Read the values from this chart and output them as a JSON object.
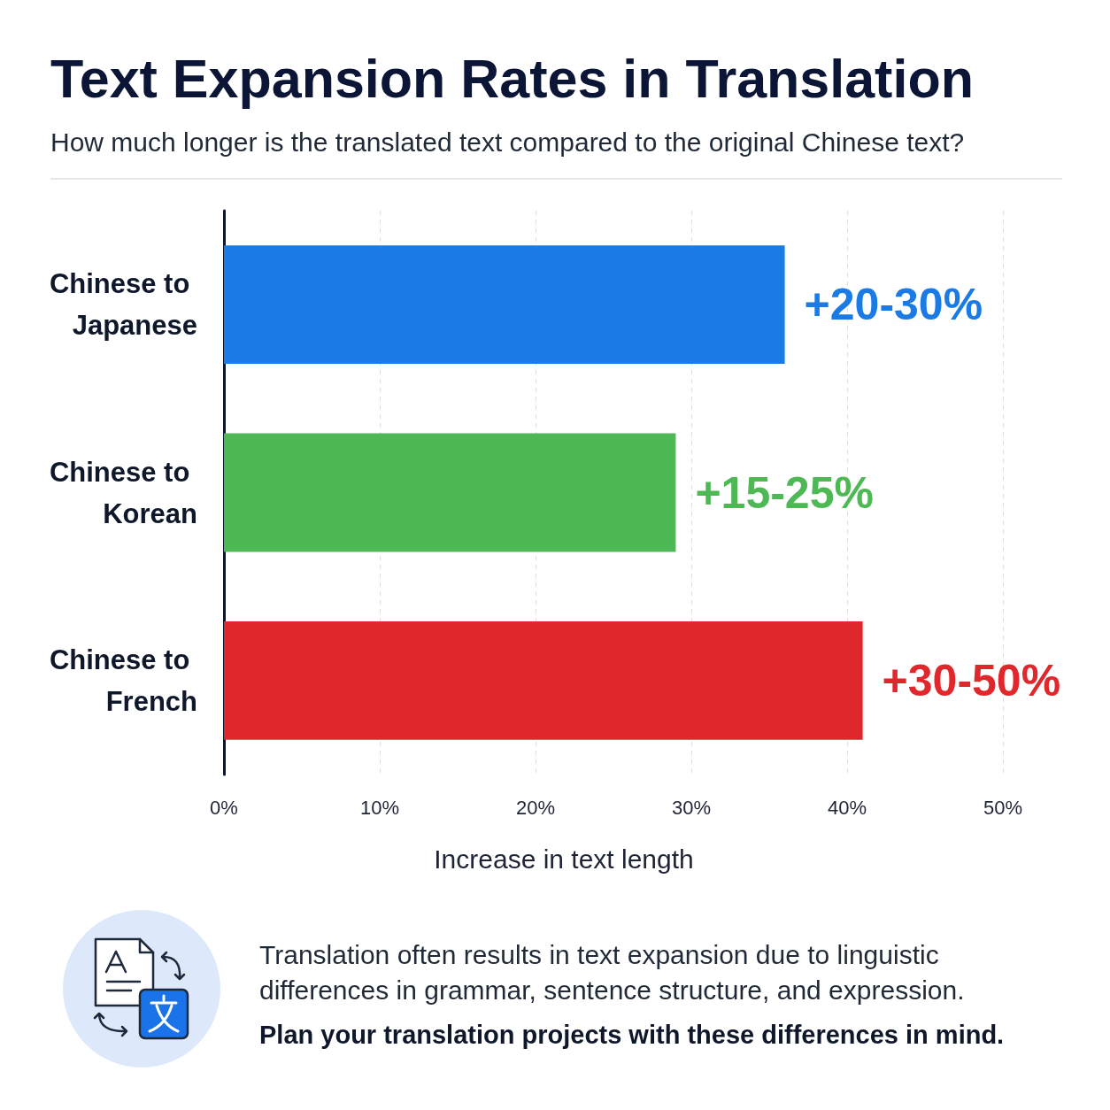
{
  "chart_data": {
    "type": "bar",
    "orientation": "horizontal",
    "title": "Text Expansion Rates in Translation",
    "subtitle": "How much longer is the translated text compared to the original Chinese text?",
    "xlabel": "Increase in text length",
    "categories": [
      "Chinese to Japanese",
      "Chinese to Korean",
      "Chinese to French"
    ],
    "values": [
      36,
      29,
      41
    ],
    "colors": [
      "#1a7be6",
      "#4db854",
      "#e0282c"
    ],
    "xlim": [
      0,
      50
    ],
    "xticks": [
      {
        "value": 0,
        "label": "0%"
      },
      {
        "value": 10,
        "label": "10%"
      },
      {
        "value": 20,
        "label": "20%"
      },
      {
        "value": 30,
        "label": "30%"
      },
      {
        "value": 40,
        "label": "40%"
      },
      {
        "value": 50,
        "label": "50%"
      }
    ],
    "grid": "x",
    "annotations": [
      {
        "text": "+20-30%",
        "x": 36,
        "y": "Chinese to Japanese"
      },
      {
        "text": "+15-25%",
        "x": 29,
        "y": "Chinese to Korean"
      },
      {
        "text": "+30-50%",
        "x": 41,
        "y": "Chinese to French"
      },
      "Translation often results in text expansion due to linguistic differences in grammar, sentence structure, and expression.",
      "Plan your translation projects with these differences in mind."
    ]
  }
}
